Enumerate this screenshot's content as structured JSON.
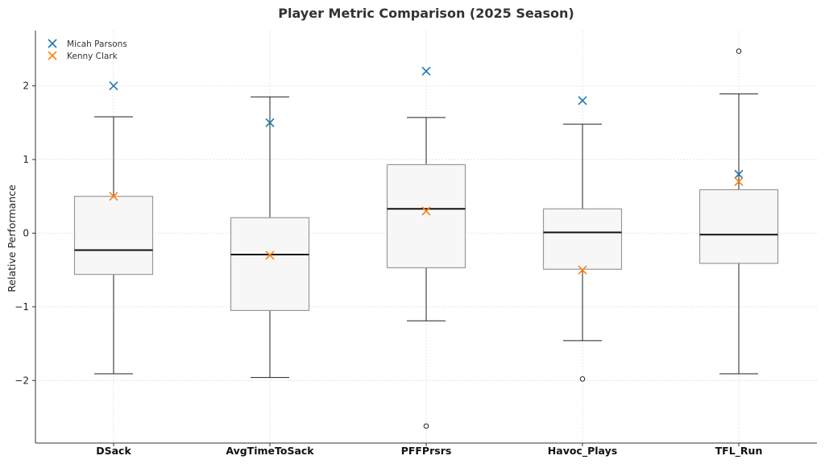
{
  "chart_data": {
    "type": "box",
    "title": "Player Metric Comparison (2025 Season)",
    "xlabel": "",
    "ylabel": "Relative Performance",
    "ylim": [
      -2.85,
      2.75
    ],
    "yticks": [
      -2,
      -1,
      0,
      1,
      2
    ],
    "ytick_labels": [
      "−2",
      "−1",
      "0",
      "1",
      "2"
    ],
    "grid": true,
    "legend_position": "top-left",
    "categories": [
      "DSack",
      "AvgTimeToSack",
      "PFFPrsrs",
      "Havoc_Plays",
      "TFL_Run"
    ],
    "boxes": [
      {
        "whisker_low": -1.91,
        "q1": -0.56,
        "median": -0.23,
        "q3": 0.5,
        "whisker_high": 1.58,
        "outliers": []
      },
      {
        "whisker_low": -1.96,
        "q1": -1.05,
        "median": -0.29,
        "q3": 0.21,
        "whisker_high": 1.85,
        "outliers": []
      },
      {
        "whisker_low": -1.19,
        "q1": -0.47,
        "median": 0.33,
        "q3": 0.93,
        "whisker_high": 1.57,
        "outliers": [
          -2.62
        ]
      },
      {
        "whisker_low": -1.46,
        "q1": -0.49,
        "median": 0.01,
        "q3": 0.33,
        "whisker_high": 1.48,
        "outliers": [
          -1.98
        ]
      },
      {
        "whisker_low": -1.91,
        "q1": -0.41,
        "median": -0.02,
        "q3": 0.59,
        "whisker_high": 1.89,
        "outliers": [
          2.47
        ]
      }
    ],
    "series": [
      {
        "name": "Micah Parsons",
        "color": "#1f77b4",
        "marker": "x",
        "values": [
          2.0,
          1.5,
          2.2,
          1.8,
          0.8
        ]
      },
      {
        "name": "Kenny Clark",
        "color": "#ff7f0e",
        "marker": "x",
        "values": [
          0.5,
          -0.3,
          0.3,
          -0.5,
          0.7
        ]
      }
    ],
    "box_fill": "#f7f7f7",
    "box_edge": "#999999",
    "median_color": "#111111",
    "whisker_color": "#222222"
  }
}
